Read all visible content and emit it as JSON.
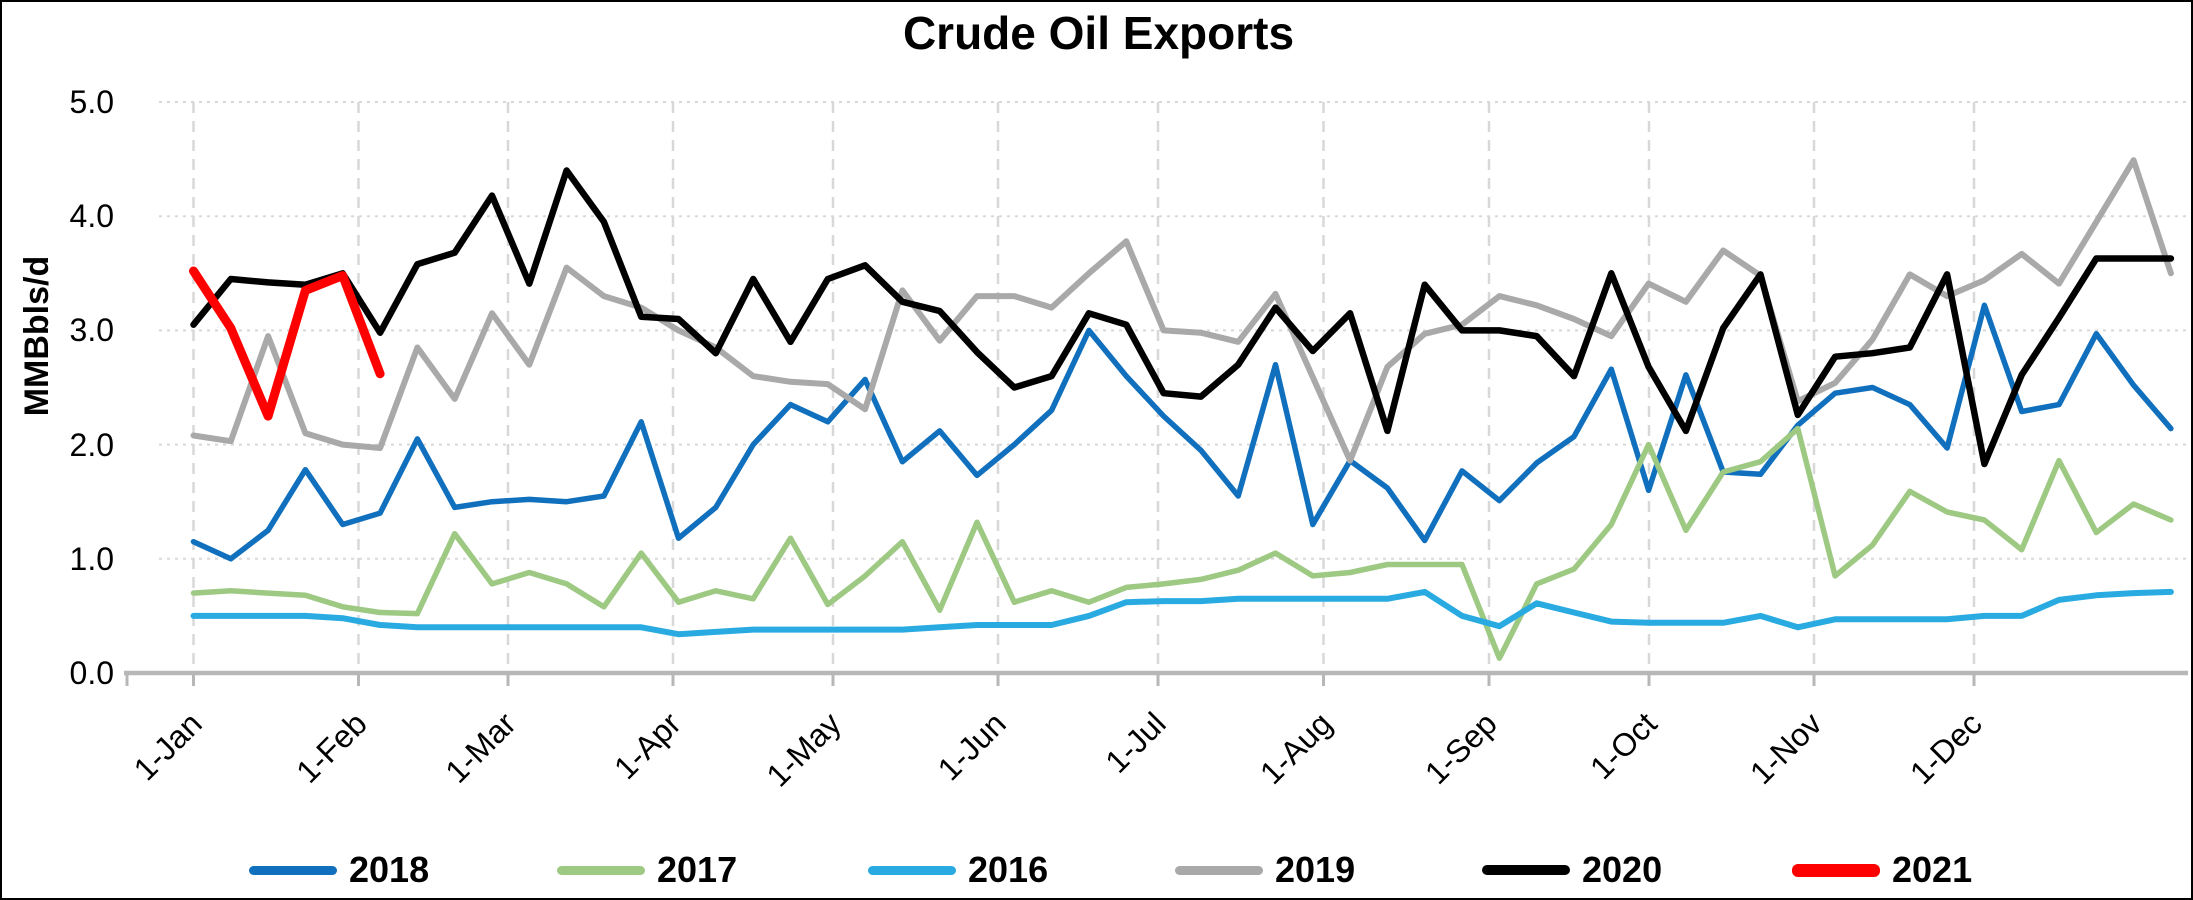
{
  "title": "Crude Oil Exports",
  "y_axis": {
    "label": "MMBbls/d",
    "tick_labels": [
      "5.0",
      "4.0",
      "3.0",
      "2.0",
      "1.0",
      "0.0"
    ],
    "min": 0,
    "max": 5
  },
  "x_axis": {
    "tick_labels": [
      "1-Jan",
      "1-Feb",
      "1-Mar",
      "1-Apr",
      "1-May",
      "1-Jun",
      "1-Jul",
      "1-Aug",
      "1-Sep",
      "1-Oct",
      "1-Nov",
      "1-Dec"
    ]
  },
  "legend": [
    {
      "label": "2018",
      "color": "#1170BD"
    },
    {
      "label": "2017",
      "color": "#9DC983"
    },
    {
      "label": "2016",
      "color": "#29ABE2"
    },
    {
      "label": "2019",
      "color": "#A9A9A9"
    },
    {
      "label": "2020",
      "color": "#000000"
    },
    {
      "label": "2021",
      "color": "#FF0000"
    }
  ],
  "chart_data": {
    "type": "line",
    "title": "Crude Oil Exports",
    "xlabel": "",
    "ylabel": "MMBbls/d",
    "ylim": [
      0,
      5
    ],
    "grid": "horizontal dotted at integers, vertical dashed at month starts",
    "legend_position": "bottom",
    "x_unit": "weekly values, first point at 1-Jan, 54 points through first week of following January",
    "months": [
      "1-Jan",
      "1-Feb",
      "1-Mar",
      "1-Apr",
      "1-May",
      "1-Jun",
      "1-Jul",
      "1-Aug",
      "1-Sep",
      "1-Oct",
      "1-Nov",
      "1-Dec"
    ],
    "series": [
      {
        "name": "2018",
        "color": "#1170BD",
        "width": 5.5,
        "values": [
          1.15,
          1.0,
          1.25,
          1.78,
          1.3,
          1.4,
          2.05,
          1.45,
          1.5,
          1.52,
          1.5,
          1.55,
          2.2,
          1.18,
          1.45,
          2.0,
          2.35,
          2.2,
          2.57,
          1.85,
          2.12,
          1.73,
          2.0,
          2.3,
          3.0,
          2.6,
          2.25,
          1.95,
          1.55,
          2.7,
          1.3,
          1.86,
          1.62,
          1.16,
          1.77,
          1.51,
          1.84,
          2.07,
          2.66,
          1.6,
          2.61,
          1.76,
          1.74,
          2.17,
          2.45,
          2.5,
          2.35,
          1.97,
          3.22,
          2.29,
          2.35,
          2.97,
          2.52,
          2.14
        ]
      },
      {
        "name": "2017",
        "color": "#9DC983",
        "width": 5.5,
        "values": [
          0.7,
          0.72,
          0.7,
          0.68,
          0.58,
          0.53,
          0.52,
          1.22,
          0.78,
          0.88,
          0.78,
          0.58,
          1.05,
          0.62,
          0.72,
          0.65,
          1.18,
          0.6,
          0.85,
          1.15,
          0.55,
          1.32,
          0.62,
          0.72,
          0.62,
          0.75,
          0.78,
          0.82,
          0.9,
          1.05,
          0.85,
          0.88,
          0.95,
          0.95,
          0.95,
          0.13,
          0.78,
          0.91,
          1.3,
          2.0,
          1.25,
          1.76,
          1.85,
          2.14,
          0.85,
          1.12,
          1.59,
          1.41,
          1.34,
          1.08,
          1.86,
          1.23,
          1.48,
          1.34
        ]
      },
      {
        "name": "2016",
        "color": "#29ABE2",
        "width": 6,
        "values": [
          0.5,
          0.5,
          0.5,
          0.5,
          0.48,
          0.42,
          0.4,
          0.4,
          0.4,
          0.4,
          0.4,
          0.4,
          0.4,
          0.34,
          0.36,
          0.38,
          0.38,
          0.38,
          0.38,
          0.38,
          0.4,
          0.42,
          0.42,
          0.42,
          0.5,
          0.62,
          0.63,
          0.63,
          0.65,
          0.65,
          0.65,
          0.65,
          0.65,
          0.71,
          0.5,
          0.41,
          0.61,
          0.53,
          0.45,
          0.44,
          0.44,
          0.44,
          0.5,
          0.4,
          0.47,
          0.47,
          0.47,
          0.47,
          0.5,
          0.5,
          0.64,
          0.68,
          0.7,
          0.71
        ]
      },
      {
        "name": "2019",
        "color": "#A9A9A9",
        "width": 6,
        "values": [
          2.08,
          2.03,
          2.95,
          2.1,
          2.0,
          1.97,
          2.85,
          2.4,
          3.15,
          2.7,
          3.55,
          3.3,
          3.2,
          3.0,
          2.85,
          2.6,
          2.55,
          2.53,
          2.31,
          3.35,
          2.91,
          3.3,
          3.3,
          3.2,
          3.5,
          3.78,
          3.0,
          2.98,
          2.9,
          3.32,
          2.59,
          1.86,
          2.68,
          2.97,
          3.05,
          3.3,
          3.22,
          3.1,
          2.95,
          3.41,
          3.25,
          3.7,
          3.48,
          2.38,
          2.54,
          2.92,
          3.49,
          3.3,
          3.44,
          3.67,
          3.41,
          3.95,
          4.49,
          3.5
        ]
      },
      {
        "name": "2020",
        "color": "#000000",
        "width": 6.5,
        "values": [
          3.05,
          3.45,
          3.42,
          3.4,
          3.5,
          2.98,
          3.58,
          3.68,
          4.18,
          3.41,
          4.4,
          3.95,
          3.12,
          3.1,
          2.8,
          3.45,
          2.9,
          3.45,
          3.57,
          3.25,
          3.17,
          2.81,
          2.5,
          2.6,
          3.15,
          3.05,
          2.45,
          2.42,
          2.7,
          3.2,
          2.82,
          3.15,
          2.12,
          3.4,
          3.0,
          3.0,
          2.95,
          2.6,
          3.5,
          2.68,
          2.12,
          3.02,
          3.49,
          2.26,
          2.77,
          2.8,
          2.85,
          3.49,
          1.83,
          2.61,
          3.11,
          3.63,
          3.63,
          3.63
        ]
      },
      {
        "name": "2021",
        "color": "#FF0000",
        "width": 9,
        "values": [
          3.52,
          3.02,
          2.25,
          3.35,
          3.48,
          2.62
        ]
      }
    ]
  }
}
